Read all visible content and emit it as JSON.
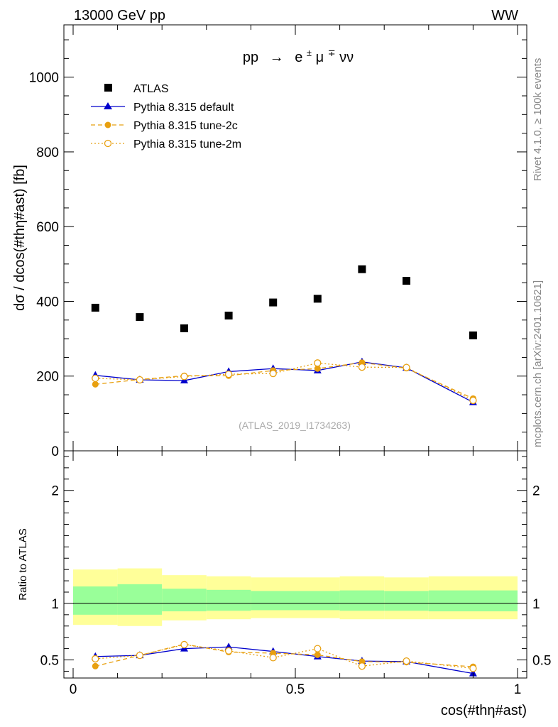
{
  "header": {
    "energy_label": "13000 GeV pp",
    "process_label": "WW",
    "title_pp": "pp",
    "title_arrow": "→",
    "title_final": "e",
    "title_pm": "±",
    "title_mu": "μ",
    "title_mp": "∓",
    "title_nunu": "νν",
    "side_rivet": "Rivet 4.1.0, ≥ 100k events",
    "side_mcplots": "mcplots.cern.ch [arXiv:2401.10621]",
    "analysis_id": "(ATLAS_2019_I1734263)"
  },
  "colors": {
    "data": "#000000",
    "default": "#0000cc",
    "tune": "#e8a010",
    "band_inner": "#99ff99",
    "band_outer": "#ffff99"
  },
  "chart_data": [
    {
      "type": "scatter",
      "panel": "main",
      "title": "pp → e±μ∓νν",
      "xlabel": "cos(#thη#ast)",
      "ylabel": "dσ / dcos(#thη#ast) [fb]",
      "xlim": [
        0,
        1
      ],
      "ylim": [
        0,
        1140
      ],
      "y_ticks": [
        0,
        200,
        400,
        600,
        800,
        1000
      ],
      "y_tick_labels": [
        "0",
        "200",
        "400",
        "600",
        "800",
        "1000"
      ],
      "x_edges": [
        0,
        0.1,
        0.2,
        0.3,
        0.4,
        0.5,
        0.6,
        0.7,
        0.8,
        1.0
      ],
      "x": [
        0.05,
        0.15,
        0.25,
        0.35,
        0.45,
        0.55,
        0.65,
        0.75,
        0.9
      ],
      "legend": [
        {
          "key": "atlas",
          "label": "ATLAS"
        },
        {
          "key": "default",
          "label": "Pythia 8.315 default"
        },
        {
          "key": "tune2c",
          "label": "Pythia 8.315 tune-2c"
        },
        {
          "key": "tune2m",
          "label": "Pythia 8.315 tune-2m"
        }
      ],
      "series": [
        {
          "key": "atlas",
          "name": "ATLAS",
          "values": [
            383,
            358,
            328,
            362,
            397,
            407,
            486,
            455,
            309
          ]
        },
        {
          "key": "default",
          "name": "Pythia 8.315 default",
          "values": [
            202,
            190,
            188,
            212,
            220,
            215,
            238,
            222,
            130
          ],
          "errors": [
            6,
            5,
            5,
            6,
            7,
            7,
            8,
            6,
            5
          ]
        },
        {
          "key": "tune2c",
          "name": "Pythia 8.315 tune-2c",
          "values": [
            178,
            191,
            201,
            201,
            215,
            220,
            236,
            221,
            140
          ],
          "errors": [
            6,
            5,
            6,
            6,
            7,
            7,
            8,
            6,
            5
          ]
        },
        {
          "key": "tune2m",
          "name": "Pythia 8.315 tune-2m",
          "values": [
            194,
            190,
            199,
            205,
            207,
            235,
            224,
            223,
            135
          ],
          "errors": [
            6,
            5,
            6,
            6,
            7,
            7,
            8,
            6,
            5
          ]
        }
      ]
    },
    {
      "type": "line",
      "panel": "ratio",
      "xlabel": "cos(#thη#ast)",
      "ylabel": "Ratio to ATLAS",
      "xlim": [
        0,
        1
      ],
      "ylim": [
        0.34,
        2.35
      ],
      "y_ticks": [
        0.5,
        1,
        2
      ],
      "y_tick_labels": [
        "0.5",
        "1",
        "2"
      ],
      "x_ticks": [
        0,
        0.5,
        1
      ],
      "x_tick_labels": [
        "0",
        "0.5",
        "1"
      ],
      "x_edges": [
        0,
        0.1,
        0.2,
        0.3,
        0.4,
        0.5,
        0.6,
        0.7,
        0.8,
        1.0
      ],
      "band_inner": [
        [
          0.9,
          1.15
        ],
        [
          0.9,
          1.17
        ],
        [
          0.93,
          1.13
        ],
        [
          0.935,
          1.12
        ],
        [
          0.94,
          1.11
        ],
        [
          0.94,
          1.11
        ],
        [
          0.935,
          1.115
        ],
        [
          0.935,
          1.11
        ],
        [
          0.93,
          1.115
        ]
      ],
      "band_outer": [
        [
          0.81,
          1.3
        ],
        [
          0.8,
          1.31
        ],
        [
          0.85,
          1.25
        ],
        [
          0.86,
          1.24
        ],
        [
          0.87,
          1.23
        ],
        [
          0.87,
          1.23
        ],
        [
          0.86,
          1.24
        ],
        [
          0.86,
          1.23
        ],
        [
          0.86,
          1.24
        ]
      ],
      "series": [
        {
          "key": "default",
          "name": "Pythia 8.315 default",
          "values": [
            0.53,
            0.54,
            0.6,
            0.615,
            0.575,
            0.53,
            0.49,
            0.485,
            0.38
          ],
          "errors": [
            0.02,
            0.02,
            0.02,
            0.02,
            0.02,
            0.02,
            0.02,
            0.02,
            0.02
          ]
        },
        {
          "key": "tune2c",
          "name": "Pythia 8.315 tune-2c",
          "values": [
            0.445,
            0.54,
            0.64,
            0.57,
            0.56,
            0.545,
            0.485,
            0.48,
            0.44
          ],
          "errors": [
            0.02,
            0.02,
            0.02,
            0.02,
            0.02,
            0.02,
            0.02,
            0.02,
            0.02
          ]
        },
        {
          "key": "tune2m",
          "name": "Pythia 8.315 tune-2m",
          "values": [
            0.51,
            0.54,
            0.635,
            0.58,
            0.52,
            0.6,
            0.445,
            0.49,
            0.425
          ],
          "errors": [
            0.02,
            0.02,
            0.02,
            0.02,
            0.02,
            0.02,
            0.02,
            0.02,
            0.02
          ]
        }
      ]
    }
  ]
}
